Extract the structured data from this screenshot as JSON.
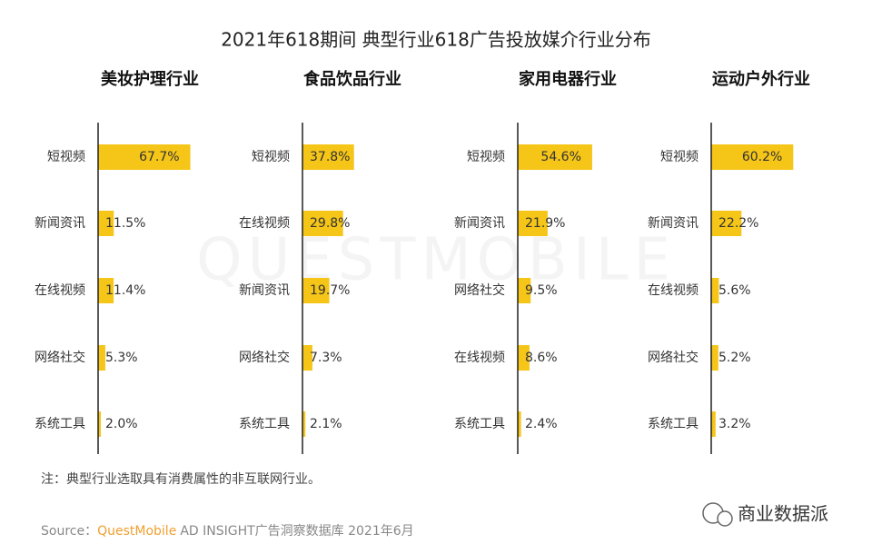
{
  "title": "2021年618期间 典型行业618广告投放媒介行业分布",
  "chart_data": [
    {
      "type": "bar",
      "title": "美妆护理行业",
      "color": "#f5c518",
      "categories": [
        "短视频",
        "新闻资讯",
        "在线视频",
        "网络社交",
        "系统工具"
      ],
      "values": [
        67.7,
        11.5,
        11.4,
        5.3,
        2.0
      ],
      "value_labels": [
        "67.7%",
        "11.5%",
        "11.4%",
        "5.3%",
        "2.0%"
      ]
    },
    {
      "type": "bar",
      "title": "食品饮品行业",
      "color": "#f5c518",
      "categories": [
        "短视频",
        "在线视频",
        "新闻资讯",
        "网络社交",
        "系统工具"
      ],
      "values": [
        37.8,
        29.8,
        19.7,
        7.3,
        2.1
      ],
      "value_labels": [
        "37.8%",
        "29.8%",
        "19.7%",
        "7.3%",
        "2.1%"
      ]
    },
    {
      "type": "bar",
      "title": "家用电器行业",
      "color": "#f5c518",
      "categories": [
        "短视频",
        "新闻资讯",
        "网络社交",
        "在线视频",
        "系统工具"
      ],
      "values": [
        54.6,
        21.9,
        9.5,
        8.6,
        2.4
      ],
      "value_labels": [
        "54.6%",
        "21.9%",
        "9.5%",
        "8.6%",
        "2.4%"
      ]
    },
    {
      "type": "bar",
      "title": "运动户外行业",
      "color": "#f5c518",
      "categories": [
        "短视频",
        "新闻资讯",
        "在线视频",
        "网络社交",
        "系统工具"
      ],
      "values": [
        60.2,
        22.2,
        5.6,
        5.2,
        3.2
      ],
      "value_labels": [
        "60.2%",
        "22.2%",
        "5.6%",
        "5.2%",
        "3.2%"
      ]
    }
  ],
  "watermark": "QUESTMOBILE",
  "note": "注：典型行业选取具有消费属性的非互联网行业。",
  "source": {
    "label": "Source：",
    "brand": "QuestMobile",
    "text": "AD INSIGHT广告洞察数据库 2021年6月"
  },
  "badge": "商业数据派"
}
